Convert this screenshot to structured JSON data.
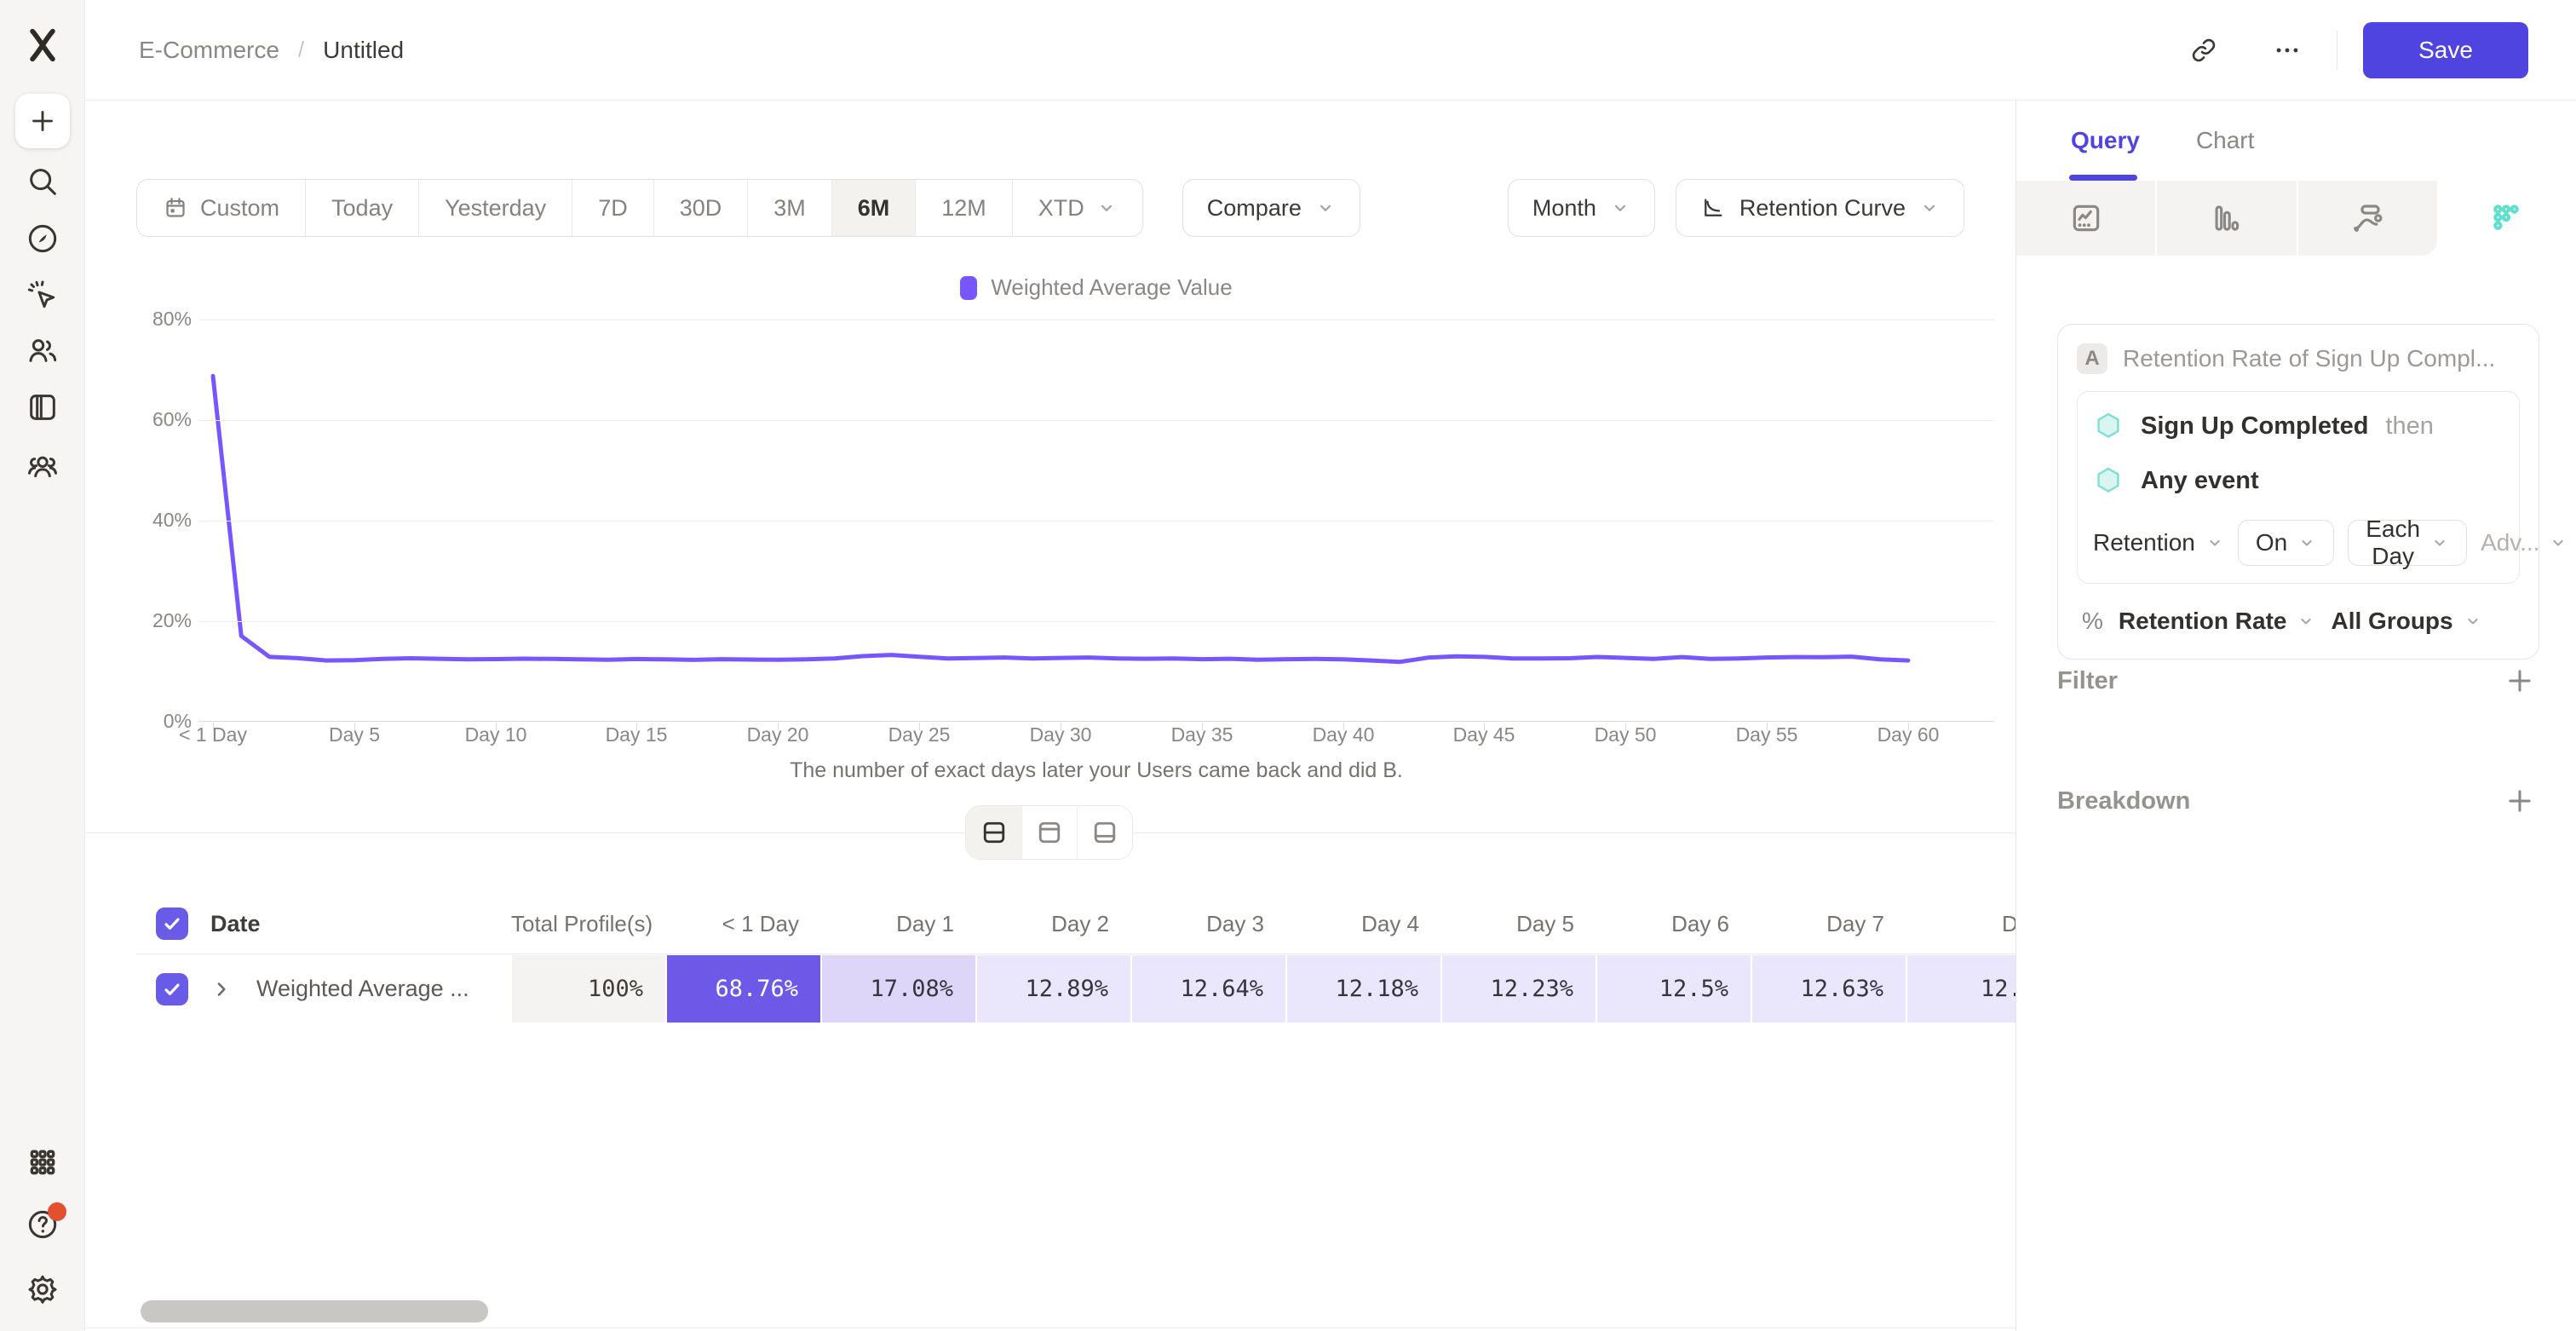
{
  "colors": {
    "accent_purple": "#4f44e0",
    "chart_purple": "#7856ff",
    "cell_strong": "#6e58e8",
    "cell_mid": "#ddd6f8",
    "cell_light": "#eae6fb",
    "cell_muted": "#f4f3f2",
    "teal": "#5fe0cc",
    "notification_red": "#e2502d"
  },
  "header": {
    "breadcrumb": {
      "project": "E-Commerce",
      "separator": "/",
      "report": "Untitled"
    },
    "save_label": "Save"
  },
  "sidebar": {
    "top_items": [
      {
        "name": "create-new",
        "icon": "plus"
      },
      {
        "name": "search",
        "icon": "search"
      },
      {
        "name": "discover",
        "icon": "compass"
      },
      {
        "name": "events",
        "icon": "cursor-click"
      },
      {
        "name": "users",
        "icon": "users"
      },
      {
        "name": "boards",
        "icon": "board"
      },
      {
        "name": "cohorts",
        "icon": "cohorts"
      }
    ],
    "bottom_items": [
      {
        "name": "apps",
        "icon": "grid"
      },
      {
        "name": "help",
        "icon": "help",
        "badge": true
      },
      {
        "name": "settings",
        "icon": "gear"
      }
    ]
  },
  "toolbar": {
    "date_ranges": [
      {
        "label": "Custom",
        "icon": "calendar"
      },
      {
        "label": "Today"
      },
      {
        "label": "Yesterday"
      },
      {
        "label": "7D"
      },
      {
        "label": "30D"
      },
      {
        "label": "3M"
      },
      {
        "label": "6M"
      },
      {
        "label": "12M"
      },
      {
        "label": "XTD",
        "chevron": true
      }
    ],
    "active_range": "6M",
    "compare_label": "Compare",
    "granularity_label": "Month",
    "chart_type_label": "Retention Curve"
  },
  "chart_data": {
    "type": "line",
    "series_name": "Weighted Average Value",
    "x_unit": "days since first event",
    "x": [
      0,
      1,
      2,
      3,
      4,
      5,
      6,
      7,
      8,
      9,
      10,
      11,
      12,
      13,
      14,
      15,
      16,
      17,
      18,
      19,
      20,
      21,
      22,
      23,
      24,
      25,
      26,
      27,
      28,
      29,
      30,
      31,
      32,
      33,
      34,
      35,
      36,
      37,
      38,
      39,
      40,
      41,
      42,
      43,
      44,
      45,
      46,
      47,
      48,
      49,
      50,
      51,
      52,
      53,
      54,
      55,
      56,
      57,
      58,
      59,
      60
    ],
    "values": [
      68.76,
      17.08,
      12.89,
      12.64,
      12.18,
      12.23,
      12.5,
      12.63,
      12.52,
      12.4,
      12.46,
      12.55,
      12.5,
      12.4,
      12.32,
      12.48,
      12.4,
      12.3,
      12.44,
      12.38,
      12.32,
      12.42,
      12.6,
      13.05,
      13.28,
      12.92,
      12.6,
      12.68,
      12.78,
      12.6,
      12.7,
      12.78,
      12.6,
      12.52,
      12.6,
      12.44,
      12.52,
      12.34,
      12.44,
      12.5,
      12.42,
      12.18,
      11.9,
      12.75,
      13.0,
      12.9,
      12.6,
      12.6,
      12.62,
      12.88,
      12.7,
      12.5,
      12.86,
      12.5,
      12.6,
      12.78,
      12.86,
      12.84,
      12.95,
      12.4,
      12.18
    ],
    "x_tick_labels": [
      "< 1 Day",
      "Day 5",
      "Day 10",
      "Day 15",
      "Day 20",
      "Day 25",
      "Day 30",
      "Day 35",
      "Day 40",
      "Day 45",
      "Day 50",
      "Day 55",
      "Day 60"
    ],
    "y_tick_labels": [
      "0%",
      "20%",
      "40%",
      "60%",
      "80%"
    ],
    "ylim": [
      0,
      80
    ],
    "xlabel": "The number of exact days later your Users came back and did B.",
    "grid": "horizontal",
    "legend_position": "top",
    "line_color": "#7856ff"
  },
  "view_toggle": {
    "options": [
      {
        "name": "split-view",
        "icon": "layout-split",
        "active": true
      },
      {
        "name": "chart-only",
        "icon": "layout-top"
      },
      {
        "name": "table-only",
        "icon": "layout-bottom"
      }
    ]
  },
  "table": {
    "columns": [
      "Date",
      "Total Profile(s)",
      "< 1 Day",
      "Day 1",
      "Day 2",
      "Day 3",
      "Day 4",
      "Day 5",
      "Day 6",
      "Day 7",
      "D"
    ],
    "rows": [
      {
        "label": "Weighted Average ...",
        "checked": true,
        "cells": [
          {
            "value": "100%",
            "tone": "muted"
          },
          {
            "value": "68.76%",
            "tone": "strong"
          },
          {
            "value": "17.08%",
            "tone": "mid"
          },
          {
            "value": "12.89%",
            "tone": "light"
          },
          {
            "value": "12.64%",
            "tone": "light"
          },
          {
            "value": "12.18%",
            "tone": "light"
          },
          {
            "value": "12.23%",
            "tone": "light"
          },
          {
            "value": "12.5%",
            "tone": "light"
          },
          {
            "value": "12.63%",
            "tone": "light"
          },
          {
            "value": "12.",
            "tone": "light",
            "clipped": true
          }
        ]
      }
    ]
  },
  "panel": {
    "tabs": [
      {
        "label": "Query",
        "active": true
      },
      {
        "label": "Chart"
      }
    ],
    "report_types": [
      {
        "name": "insights",
        "icon": "insights"
      },
      {
        "name": "funnels",
        "icon": "bars"
      },
      {
        "name": "flows",
        "icon": "flows"
      },
      {
        "name": "retention",
        "icon": "retention-dots",
        "active": true
      }
    ],
    "query": {
      "step_badge": "A",
      "step_title": "Retention Rate of Sign Up Compl...",
      "first_event": {
        "label": "Sign Up Completed",
        "suffix": "then"
      },
      "return_event": {
        "label": "Any event"
      },
      "controls": [
        {
          "label": "Retention",
          "style": "plain"
        },
        {
          "label": "On",
          "style": "outlined"
        },
        {
          "label": "Each Day",
          "style": "outlined"
        },
        {
          "label": "Adv...",
          "style": "ghost"
        }
      ],
      "measure": {
        "prefix": "%",
        "metric": "Retention Rate",
        "groups": "All Groups"
      }
    },
    "sections": [
      {
        "label": "Filter"
      },
      {
        "label": "Breakdown"
      }
    ]
  }
}
